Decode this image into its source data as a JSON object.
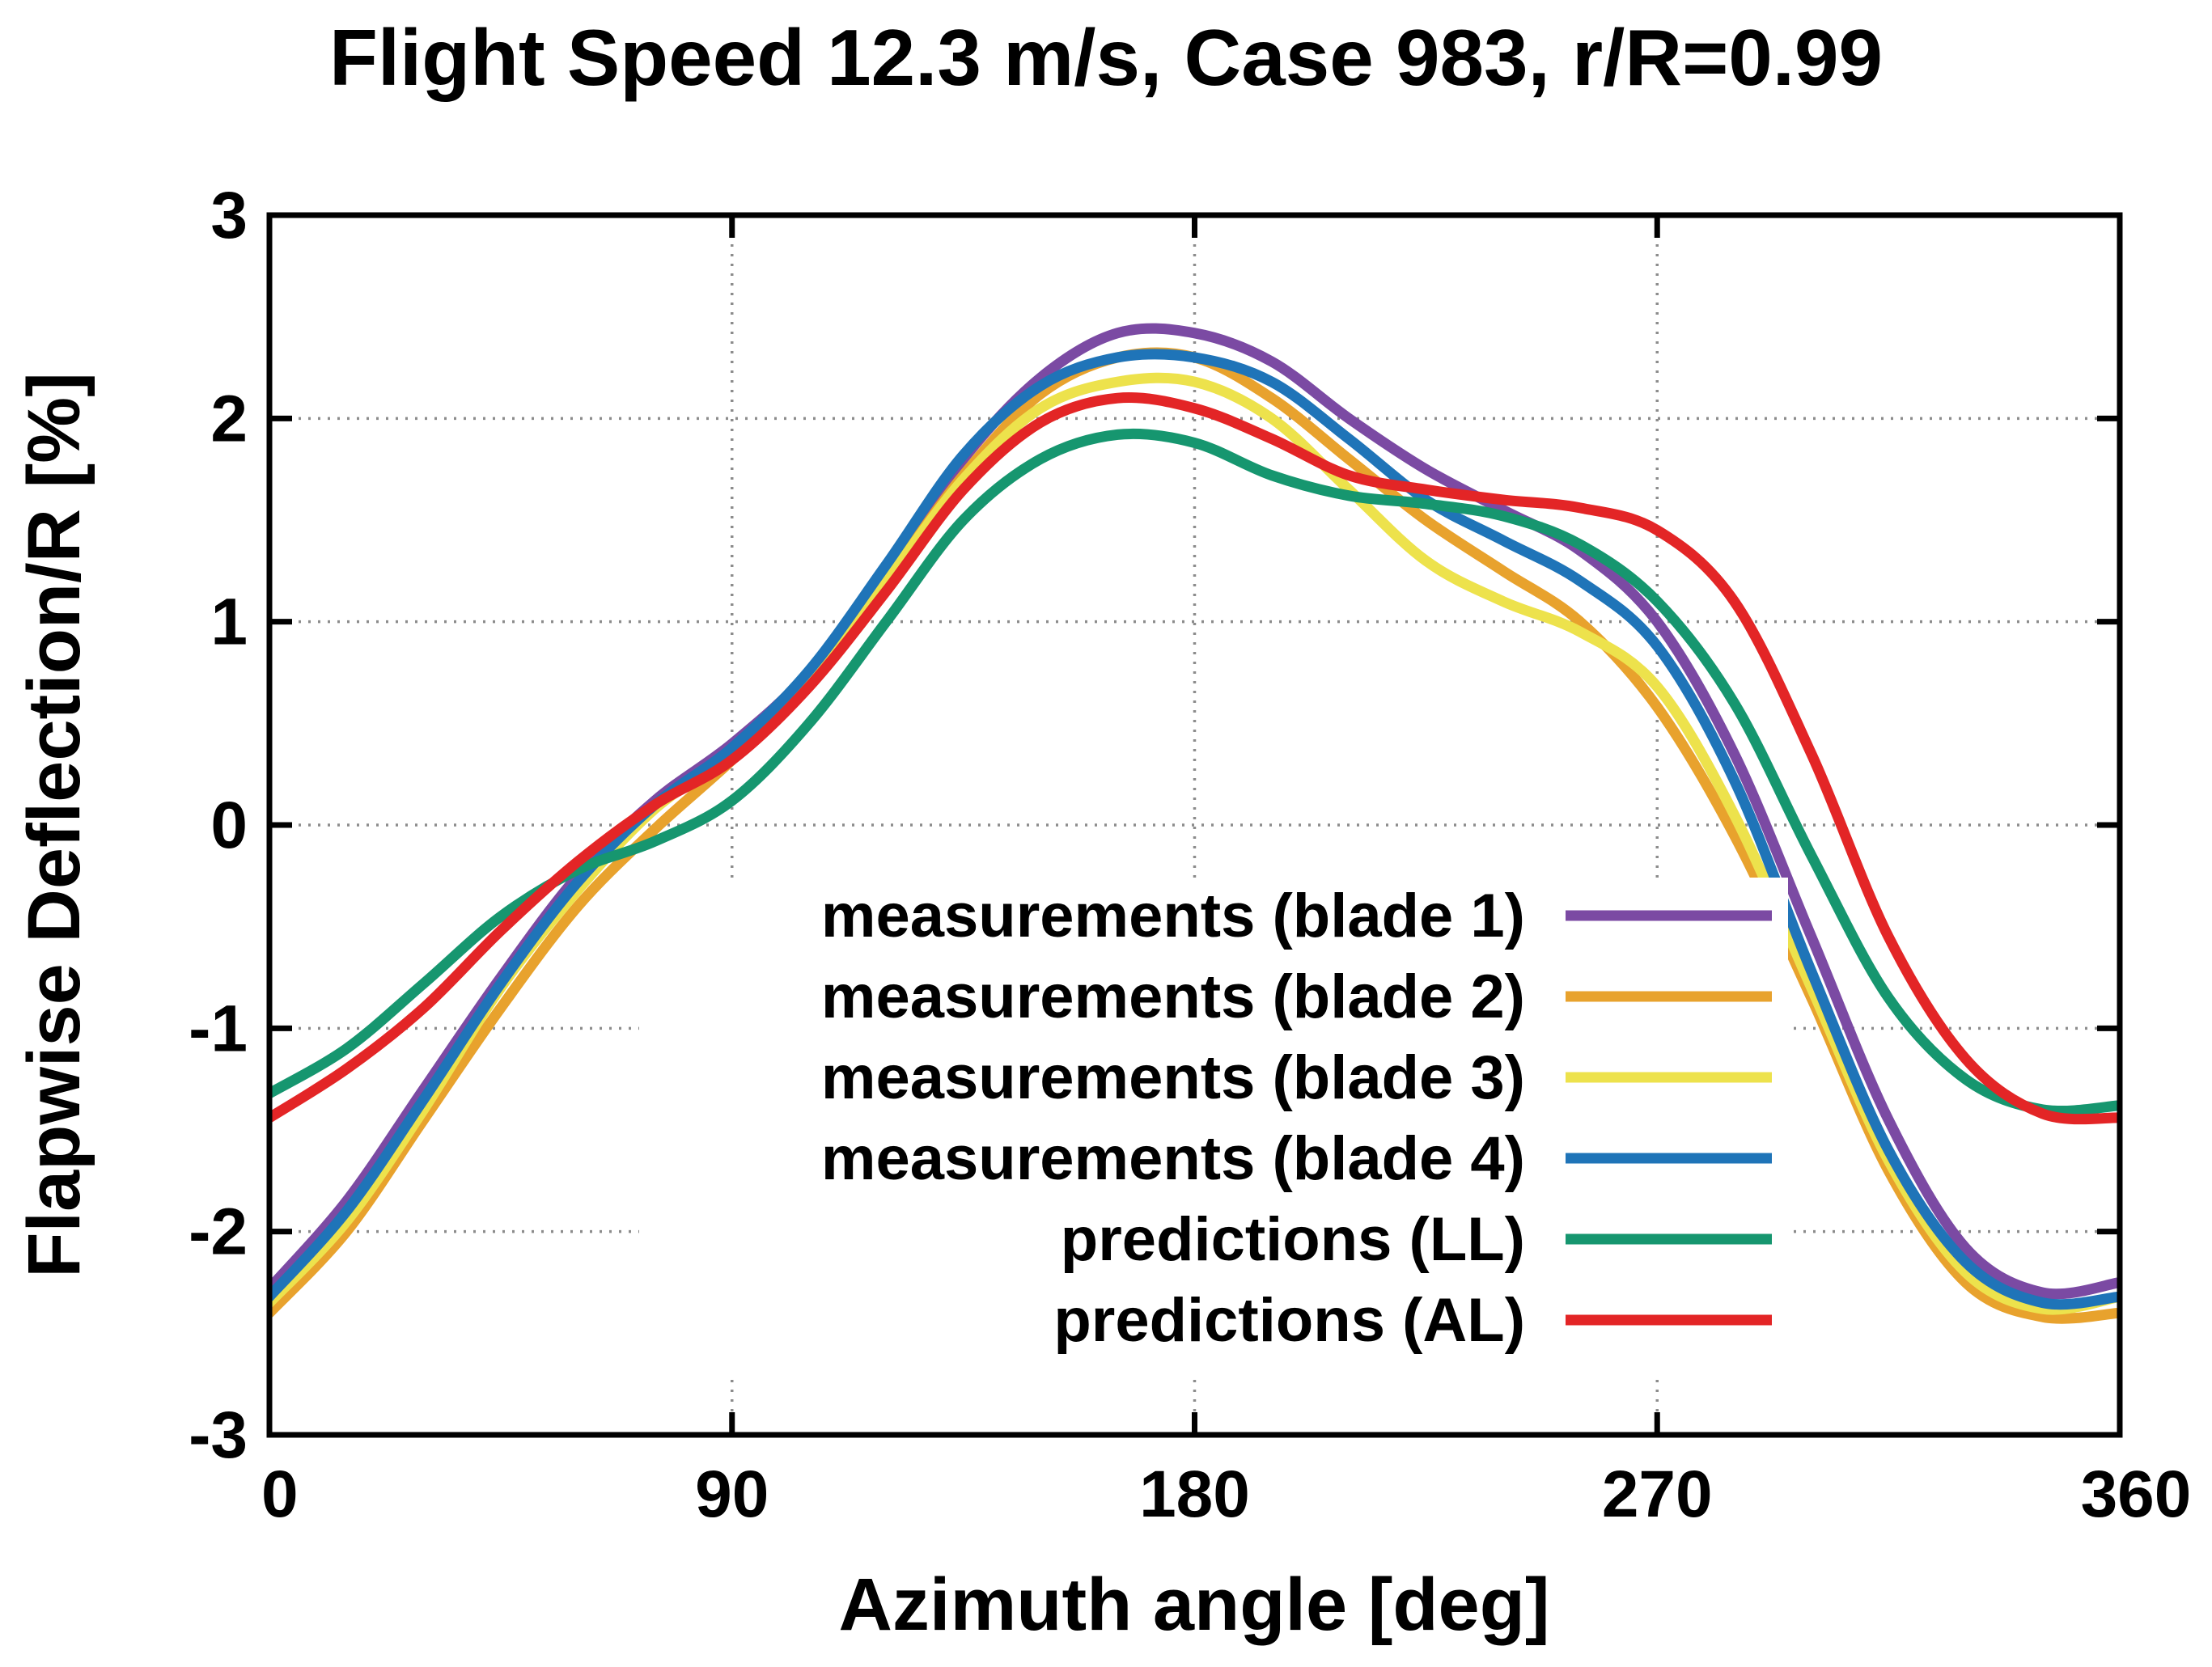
{
  "chart_data": {
    "type": "line",
    "title": "Flight Speed 12.3 m/s, Case 983, r/R=0.99",
    "xlabel": "Azimuth angle [deg]",
    "ylabel": "Flapwise Deflection/R [%]",
    "xlim": [
      0,
      360
    ],
    "ylim": [
      -3,
      3
    ],
    "xticks": [
      0,
      90,
      180,
      270,
      360
    ],
    "yticks": [
      -3,
      -2,
      -1,
      0,
      1,
      2,
      3
    ],
    "xtick_labels": [
      "0",
      "90",
      "180",
      "270",
      "360"
    ],
    "ytick_labels": [
      "-3",
      "-2",
      "-1",
      "0",
      "1",
      "2",
      "3"
    ],
    "grid": true,
    "legend_position": "inside-lower-center",
    "series": [
      {
        "name": "measurements (blade 1)",
        "color": "#7b4aa3",
        "x": [
          0,
          15,
          30,
          45,
          60,
          75,
          90,
          105,
          120,
          135,
          150,
          165,
          180,
          195,
          210,
          225,
          240,
          255,
          270,
          285,
          300,
          315,
          330,
          345,
          360
        ],
        "y": [
          -2.28,
          -1.85,
          -1.3,
          -0.75,
          -0.25,
          0.12,
          0.4,
          0.75,
          1.25,
          1.8,
          2.2,
          2.42,
          2.42,
          2.28,
          2.0,
          1.75,
          1.55,
          1.35,
          1.0,
          0.35,
          -0.55,
          -1.45,
          -2.08,
          -2.3,
          -2.25
        ]
      },
      {
        "name": "measurements (blade 2)",
        "color": "#e8a22d",
        "x": [
          0,
          15,
          30,
          45,
          60,
          75,
          90,
          105,
          120,
          135,
          150,
          165,
          180,
          195,
          210,
          225,
          240,
          255,
          270,
          285,
          300,
          315,
          330,
          345,
          360
        ],
        "y": [
          -2.4,
          -2.0,
          -1.45,
          -0.9,
          -0.4,
          -0.02,
          0.32,
          0.7,
          1.2,
          1.72,
          2.12,
          2.3,
          2.3,
          2.1,
          1.8,
          1.5,
          1.25,
          1.0,
          0.58,
          -0.05,
          -0.85,
          -1.7,
          -2.25,
          -2.42,
          -2.4
        ]
      },
      {
        "name": "measurements (blade 3)",
        "color": "#ede24c",
        "x": [
          0,
          15,
          30,
          45,
          60,
          75,
          90,
          105,
          120,
          135,
          150,
          165,
          180,
          195,
          210,
          225,
          240,
          255,
          270,
          285,
          300,
          315,
          330,
          345,
          360
        ],
        "y": [
          -2.35,
          -1.95,
          -1.4,
          -0.8,
          -0.32,
          0.08,
          0.35,
          0.72,
          1.2,
          1.7,
          2.05,
          2.18,
          2.18,
          2.0,
          1.65,
          1.3,
          1.1,
          0.95,
          0.68,
          0.05,
          -0.8,
          -1.65,
          -2.2,
          -2.38,
          -2.32
        ]
      },
      {
        "name": "measurements (blade 4)",
        "color": "#1f74b8",
        "x": [
          0,
          15,
          30,
          45,
          60,
          75,
          90,
          105,
          120,
          135,
          150,
          165,
          180,
          195,
          210,
          225,
          240,
          255,
          270,
          285,
          300,
          315,
          330,
          345,
          360
        ],
        "y": [
          -2.32,
          -1.9,
          -1.35,
          -0.78,
          -0.28,
          0.1,
          0.38,
          0.76,
          1.28,
          1.82,
          2.16,
          2.3,
          2.3,
          2.18,
          1.9,
          1.6,
          1.4,
          1.2,
          0.88,
          0.22,
          -0.72,
          -1.6,
          -2.15,
          -2.35,
          -2.32
        ]
      },
      {
        "name": "predictions (LL)",
        "color": "#16966f",
        "x": [
          0,
          15,
          30,
          45,
          60,
          75,
          90,
          105,
          120,
          135,
          150,
          165,
          180,
          195,
          210,
          225,
          240,
          255,
          270,
          285,
          300,
          315,
          330,
          345,
          360
        ],
        "y": [
          -1.32,
          -1.1,
          -0.78,
          -0.45,
          -0.22,
          -0.08,
          0.12,
          0.5,
          1.0,
          1.5,
          1.8,
          1.92,
          1.88,
          1.72,
          1.62,
          1.58,
          1.52,
          1.38,
          1.1,
          0.6,
          -0.15,
          -0.85,
          -1.25,
          -1.4,
          -1.38
        ]
      },
      {
        "name": "predictions (AL)",
        "color": "#e32526",
        "x": [
          0,
          15,
          30,
          45,
          60,
          75,
          90,
          105,
          120,
          135,
          150,
          165,
          180,
          195,
          210,
          225,
          240,
          255,
          270,
          285,
          300,
          315,
          330,
          345,
          360
        ],
        "y": [
          -1.44,
          -1.2,
          -0.9,
          -0.52,
          -0.18,
          0.1,
          0.32,
          0.68,
          1.15,
          1.65,
          1.98,
          2.1,
          2.05,
          1.9,
          1.72,
          1.65,
          1.6,
          1.56,
          1.45,
          1.1,
          0.35,
          -0.55,
          -1.15,
          -1.42,
          -1.44
        ]
      }
    ]
  }
}
